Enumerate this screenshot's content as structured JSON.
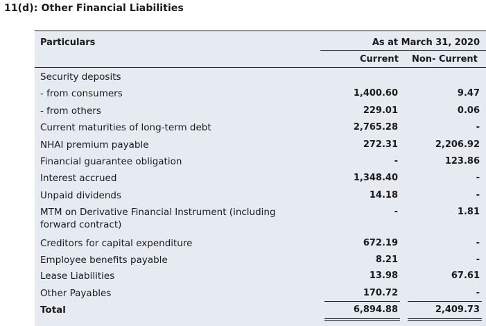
{
  "heading": "11(d): Other Financial Liabilities",
  "header": {
    "particulars": "Particulars",
    "period": "As at March 31, 2020",
    "current": "Current",
    "non_current": "Non- Current"
  },
  "rows": [
    {
      "label": "Security deposits",
      "current": "",
      "non_current": ""
    },
    {
      "label": "- from consumers",
      "current": "1,400.60",
      "non_current": "9.47"
    },
    {
      "label": "- from others",
      "current": "229.01",
      "non_current": "0.06"
    },
    {
      "label": "Current maturities of long-term debt",
      "current": "2,765.28",
      "non_current": "-"
    },
    {
      "label": "NHAI premium payable",
      "current": "272.31",
      "non_current": "2,206.92"
    },
    {
      "label": "Financial guarantee obligation",
      "current": "-",
      "non_current": "123.86"
    },
    {
      "label": "Interest accrued",
      "current": "1,348.40",
      "non_current": "-"
    },
    {
      "label": "Unpaid dividends",
      "current": "14.18",
      "non_current": "-"
    },
    {
      "label": "MTM on Derivative Financial Instrument (including forward contract)",
      "current": "-",
      "non_current": "1.81"
    },
    {
      "label": "Creditors for capital expenditure",
      "current": "672.19",
      "non_current": "-"
    },
    {
      "label": "Employee benefits payable",
      "current": "8.21",
      "non_current": "-"
    },
    {
      "label": "Lease Liabilities",
      "current": "13.98",
      "non_current": "67.61"
    },
    {
      "label": "Other Payables",
      "current": "170.72",
      "non_current": "-"
    }
  ],
  "total": {
    "label": "Total",
    "current": "6,894.88",
    "non_current": "2,409.73"
  }
}
